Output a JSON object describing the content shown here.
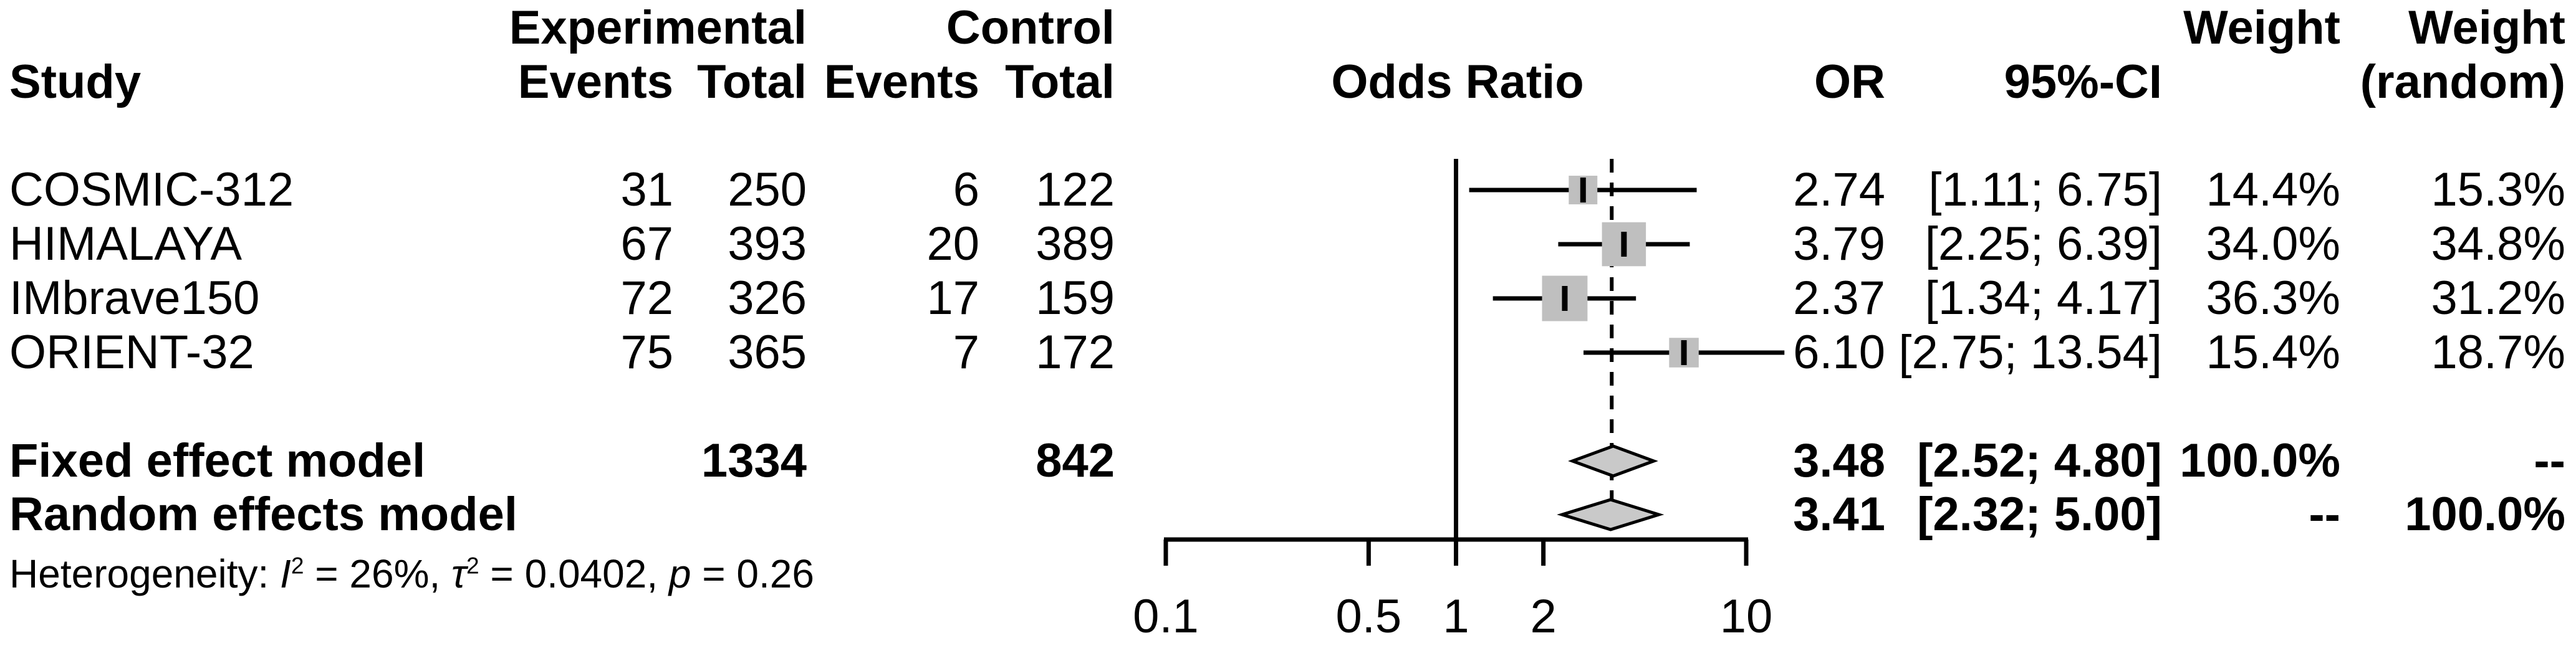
{
  "headers": {
    "study": "Study",
    "experimental": "Experimental",
    "control": "Control",
    "events": "Events",
    "total": "Total",
    "odds_ratio": "Odds Ratio",
    "or": "OR",
    "ci": "95%-CI",
    "weight_fixed": "Weight",
    "weight_random_line1": "Weight",
    "weight_random_line2": "(random)"
  },
  "chart_data": {
    "type": "scatter",
    "variant": "forest-plot",
    "x_axis": {
      "scale": "log10",
      "range": [
        0.1,
        10
      ],
      "tick_values": [
        0.1,
        0.5,
        1,
        2,
        10
      ],
      "tick_labels": [
        "0.1",
        "0.5",
        "1",
        "2",
        "10"
      ],
      "reference_line": 1,
      "pooled_dashed_line": 3.44
    },
    "studies": [
      {
        "name": "COSMIC-312",
        "exp_events": "31",
        "exp_total": "250",
        "ctrl_events": "6",
        "ctrl_total": "122",
        "or": 2.74,
        "or_label": "2.74",
        "ci_low": 1.11,
        "ci_high": 6.75,
        "ci_label": "[1.11; 6.75]",
        "weight_fixed": 14.4,
        "weight_fixed_label": "14.4%",
        "weight_random_label": "15.3%"
      },
      {
        "name": "HIMALAYA",
        "exp_events": "67",
        "exp_total": "393",
        "ctrl_events": "20",
        "ctrl_total": "389",
        "or": 3.79,
        "or_label": "3.79",
        "ci_low": 2.25,
        "ci_high": 6.39,
        "ci_label": "[2.25; 6.39]",
        "weight_fixed": 34.0,
        "weight_fixed_label": "34.0%",
        "weight_random_label": "34.8%"
      },
      {
        "name": "IMbrave150",
        "exp_events": "72",
        "exp_total": "326",
        "ctrl_events": "17",
        "ctrl_total": "159",
        "or": 2.37,
        "or_label": "2.37",
        "ci_low": 1.34,
        "ci_high": 4.17,
        "ci_label": "[1.34; 4.17]",
        "weight_fixed": 36.3,
        "weight_fixed_label": "36.3%",
        "weight_random_label": "31.2%"
      },
      {
        "name": "ORIENT-32",
        "exp_events": "75",
        "exp_total": "365",
        "ctrl_events": "7",
        "ctrl_total": "172",
        "or": 6.1,
        "or_label": "6.10",
        "ci_low": 2.75,
        "ci_high": 13.54,
        "ci_label": "[2.75; 13.54]",
        "weight_fixed": 15.4,
        "weight_fixed_label": "15.4%",
        "weight_random_label": "18.7%"
      }
    ],
    "pooled": [
      {
        "name": "Fixed effect model",
        "exp_total": "1334",
        "ctrl_total": "842",
        "or": 3.48,
        "or_label": "3.48",
        "ci_low": 2.52,
        "ci_high": 4.8,
        "ci_label": "[2.52; 4.80]",
        "weight_fixed_label": "100.0%",
        "weight_random_label": "--"
      },
      {
        "name": "Random effects model",
        "exp_total": "",
        "ctrl_total": "",
        "or": 3.41,
        "or_label": "3.41",
        "ci_low": 2.32,
        "ci_high": 5.0,
        "ci_label": "[2.32; 5.00]",
        "weight_fixed_label": "--",
        "weight_random_label": "100.0%"
      }
    ],
    "heterogeneity": {
      "prefix": "Heterogeneity: ",
      "i_sym": "I",
      "i_sup": "2",
      "i_rest": " = 26%, ",
      "tau_sym": "τ",
      "tau_sup": "2",
      "tau_rest": " = 0.0402, ",
      "p_sym": "p",
      "p_rest": " = 0.26"
    },
    "colors": {
      "square_fill": "#bfbfbf",
      "diamond_fill": "#c9c9c9",
      "line": "#000000",
      "background": "#ffffff"
    }
  }
}
